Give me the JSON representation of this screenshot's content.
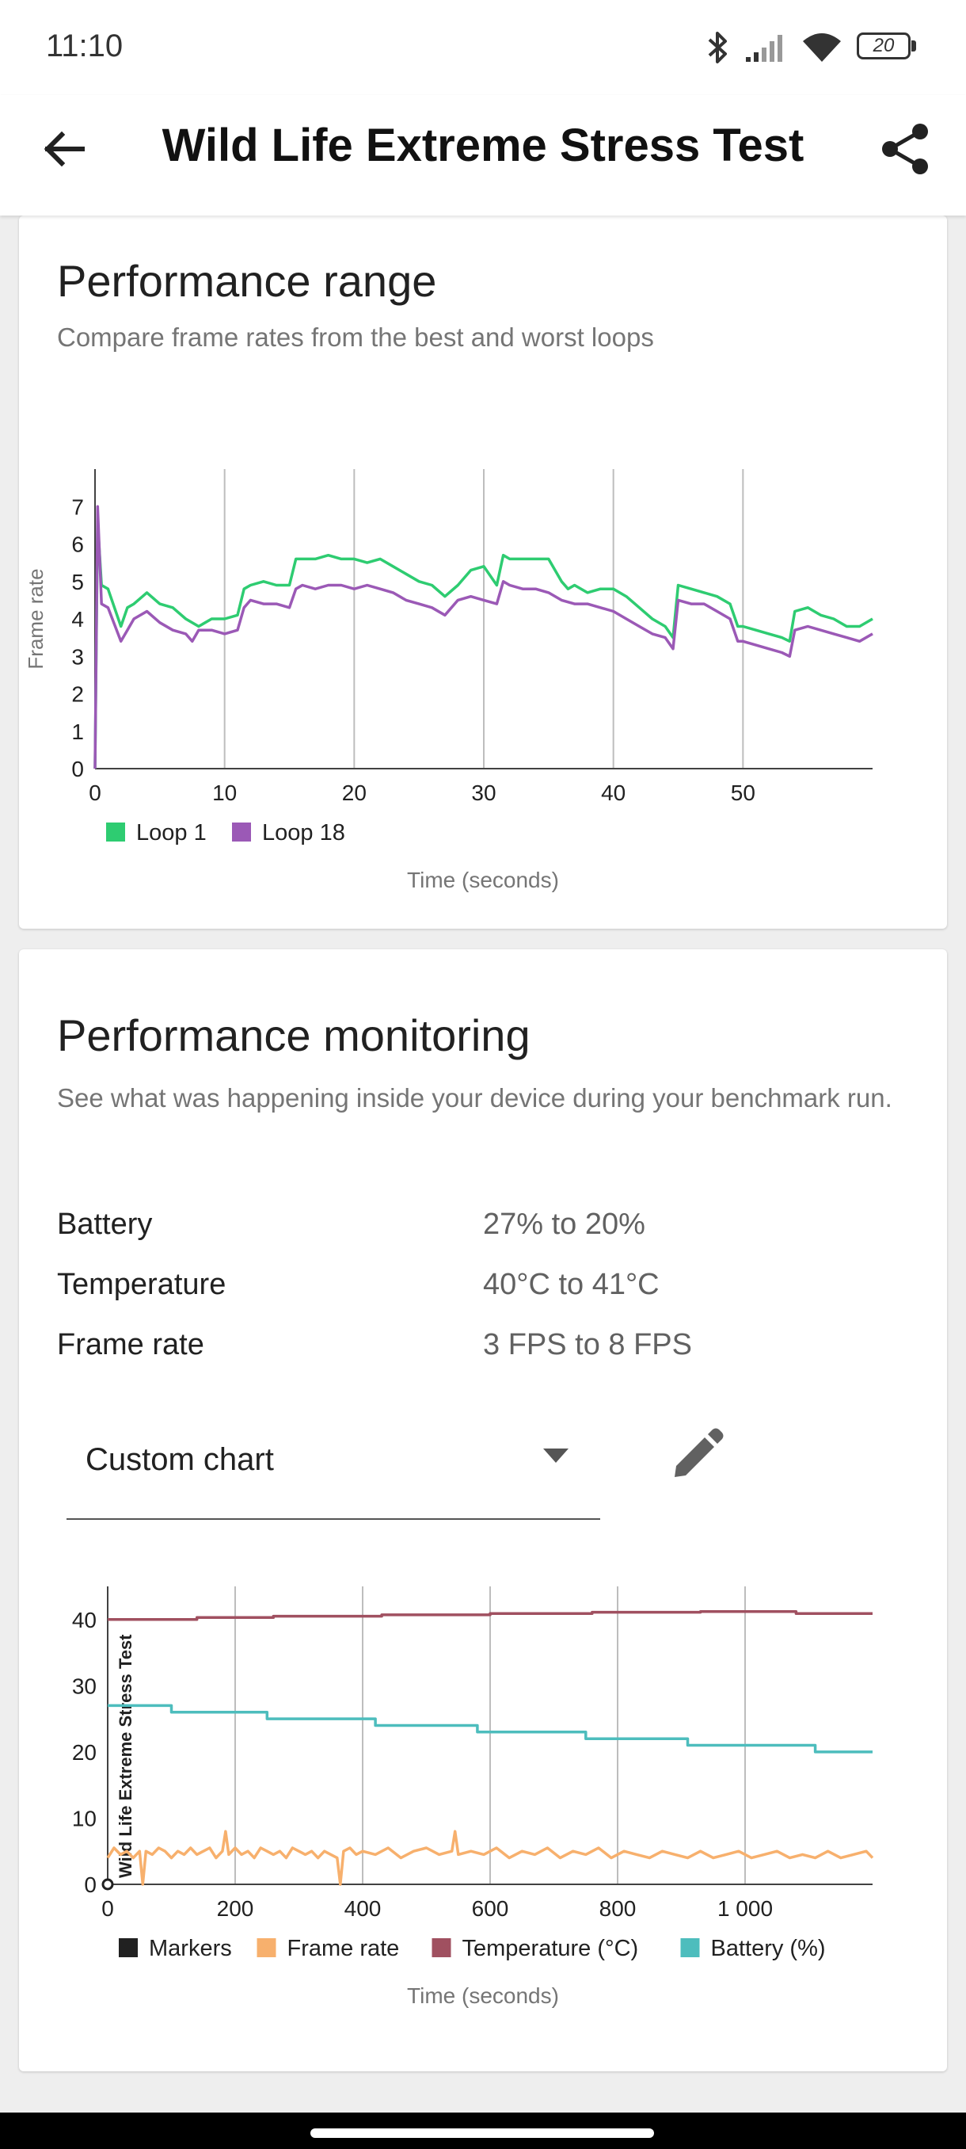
{
  "status_bar": {
    "time": "11:10",
    "battery": "20",
    "icons": [
      "bluetooth-icon",
      "signal-icon",
      "wifi-icon",
      "battery-icon"
    ]
  },
  "app_bar": {
    "title": "Wild Life Extreme Stress Test",
    "back_icon": "arrow-left-icon",
    "share_icon": "share-icon"
  },
  "performance_range": {
    "title": "Performance range",
    "subtitle": "Compare frame rates from the best and worst loops"
  },
  "performance_monitoring": {
    "title": "Performance monitoring",
    "subtitle": "See what was happening inside your device during your benchmark run.",
    "stats": [
      {
        "label": "Battery",
        "value": "27% to 20%"
      },
      {
        "label": "Temperature",
        "value": "40°C to 41°C"
      },
      {
        "label": "Frame rate",
        "value": "3 FPS to 8 FPS"
      }
    ],
    "dropdown_value": "Custom chart",
    "edit_icon": "pencil-icon"
  },
  "chart_data": [
    {
      "type": "line",
      "ylabel": "Frame rate",
      "xlabel": "Time (seconds)",
      "xlim": [
        0,
        60
      ],
      "ylim": [
        0,
        8
      ],
      "x_ticks": [
        0,
        10,
        20,
        30,
        40,
        50
      ],
      "y_ticks": [
        0,
        1,
        2,
        3,
        4,
        5,
        6,
        7
      ],
      "legend_position": "bottom-left",
      "series": [
        {
          "name": "Loop 1",
          "color": "#2ecc71",
          "x": [
            0,
            0.2,
            0.5,
            1.0,
            2.0,
            2.5,
            3.0,
            4.0,
            5.0,
            6.0,
            7.0,
            8.0,
            9.0,
            10.0,
            11.0,
            11.5,
            12.0,
            13.0,
            14.0,
            15.0,
            15.5,
            16.0,
            17.0,
            18.0,
            19.0,
            20.0,
            21.0,
            22.0,
            23.0,
            24.0,
            25.0,
            26.0,
            27.0,
            28.0,
            29.0,
            30.0,
            31.0,
            31.5,
            32.0,
            33.0,
            34.0,
            35.0,
            36.0,
            36.5,
            37.0,
            38.0,
            39.0,
            40.0,
            41.0,
            42.0,
            43.0,
            44.0,
            44.6,
            45.0,
            46.0,
            47.0,
            48.0,
            49.0,
            49.6,
            50.0,
            51.0,
            52.0,
            53.0,
            53.6,
            54.0,
            55.0,
            56.0,
            57.0,
            58.0,
            59.0,
            60.0
          ],
          "y": [
            0,
            6.6,
            4.9,
            4.8,
            3.8,
            4.3,
            4.4,
            4.7,
            4.4,
            4.3,
            4.0,
            3.8,
            4.0,
            4.0,
            4.1,
            4.8,
            4.9,
            5.0,
            4.9,
            4.9,
            5.6,
            5.6,
            5.6,
            5.7,
            5.6,
            5.6,
            5.5,
            5.6,
            5.4,
            5.2,
            5.0,
            4.9,
            4.6,
            4.9,
            5.3,
            5.4,
            4.9,
            5.7,
            5.6,
            5.6,
            5.6,
            5.6,
            5.0,
            4.8,
            4.9,
            4.7,
            4.8,
            4.8,
            4.6,
            4.3,
            4.0,
            3.8,
            3.5,
            4.9,
            4.8,
            4.7,
            4.6,
            4.4,
            3.8,
            3.8,
            3.7,
            3.6,
            3.5,
            3.4,
            4.2,
            4.3,
            4.1,
            4.0,
            3.8,
            3.8,
            4.0
          ]
        },
        {
          "name": "Loop 18",
          "color": "#9b59b6",
          "x": [
            0,
            0.2,
            0.5,
            1.0,
            2.0,
            2.5,
            3.0,
            4.0,
            5.0,
            6.0,
            7.0,
            7.5,
            8.0,
            9.0,
            10.0,
            11.0,
            11.5,
            12.0,
            13.0,
            14.0,
            15.0,
            15.5,
            16.0,
            17.0,
            18.0,
            19.0,
            20.0,
            21.0,
            22.0,
            23.0,
            24.0,
            25.0,
            26.0,
            27.0,
            28.0,
            29.0,
            30.0,
            31.0,
            31.5,
            32.0,
            33.0,
            34.0,
            35.0,
            36.0,
            37.0,
            38.0,
            39.0,
            40.0,
            41.0,
            42.0,
            43.0,
            44.0,
            44.6,
            45.0,
            46.0,
            47.0,
            48.0,
            49.0,
            49.6,
            50.0,
            51.0,
            52.0,
            53.0,
            53.6,
            54.0,
            55.0,
            56.0,
            57.0,
            58.0,
            59.0,
            60.0
          ],
          "y": [
            0,
            7.0,
            4.4,
            4.3,
            3.4,
            3.7,
            4.0,
            4.2,
            3.9,
            3.7,
            3.6,
            3.4,
            3.7,
            3.7,
            3.6,
            3.7,
            4.3,
            4.5,
            4.4,
            4.4,
            4.3,
            4.8,
            4.9,
            4.8,
            4.9,
            4.9,
            4.8,
            4.9,
            4.8,
            4.7,
            4.5,
            4.4,
            4.3,
            4.1,
            4.5,
            4.6,
            4.5,
            4.4,
            5.0,
            4.9,
            4.8,
            4.8,
            4.7,
            4.5,
            4.4,
            4.4,
            4.3,
            4.2,
            4.0,
            3.8,
            3.6,
            3.5,
            3.2,
            4.5,
            4.4,
            4.4,
            4.2,
            4.0,
            3.4,
            3.4,
            3.3,
            3.2,
            3.1,
            3.0,
            3.7,
            3.8,
            3.7,
            3.6,
            3.5,
            3.4,
            3.6
          ]
        }
      ]
    },
    {
      "type": "line",
      "xlabel": "Time (seconds)",
      "xlim": [
        0,
        1200
      ],
      "ylim": [
        0,
        45
      ],
      "x_ticks": [
        0,
        200,
        400,
        600,
        800,
        1000
      ],
      "x_tick_labels": [
        "0",
        "200",
        "400",
        "600",
        "800",
        "1 000"
      ],
      "y_ticks": [
        0,
        10,
        20,
        30,
        40
      ],
      "legend_position": "bottom-left",
      "marker": {
        "x": 0,
        "label": "Wild Life Extreme Stress Test"
      },
      "series": [
        {
          "name": "Markers",
          "color": "#212121",
          "x": [],
          "y": []
        },
        {
          "name": "Frame rate",
          "color": "#f7b06d",
          "x": [
            0,
            10,
            20,
            30,
            40,
            50,
            55,
            60,
            70,
            80,
            90,
            100,
            110,
            120,
            130,
            140,
            150,
            160,
            170,
            180,
            185,
            190,
            200,
            210,
            220,
            230,
            240,
            250,
            260,
            270,
            280,
            290,
            300,
            310,
            320,
            330,
            340,
            350,
            360,
            365,
            370,
            380,
            390,
            400,
            420,
            440,
            460,
            480,
            500,
            520,
            540,
            545,
            550,
            570,
            590,
            610,
            630,
            650,
            670,
            690,
            710,
            730,
            750,
            770,
            790,
            810,
            830,
            850,
            870,
            890,
            910,
            930,
            950,
            970,
            990,
            1010,
            1030,
            1050,
            1070,
            1090,
            1110,
            1130,
            1150,
            1170,
            1190,
            1200
          ],
          "y": [
            4,
            5.5,
            4.5,
            5,
            4,
            5,
            0,
            5,
            4.5,
            5.5,
            5,
            4,
            5,
            4.5,
            5.5,
            4.5,
            5,
            5.5,
            4,
            5,
            8,
            4.5,
            5.5,
            4.5,
            5,
            4,
            5.5,
            5,
            4.5,
            5,
            4,
            5.5,
            5,
            4.5,
            5,
            4,
            5,
            4.5,
            4,
            0,
            5,
            5.5,
            4.5,
            5,
            4.5,
            5.5,
            4,
            5,
            5.5,
            4.5,
            5,
            8,
            4.5,
            5,
            4.5,
            5.5,
            4,
            5,
            4.5,
            5.5,
            4,
            5,
            4.5,
            5.5,
            4,
            5,
            4.5,
            4,
            5,
            4.5,
            4,
            5,
            4,
            4.5,
            5,
            4,
            4.5,
            5,
            4,
            4.5,
            4,
            5,
            4,
            4.5,
            5,
            4
          ]
        },
        {
          "name": "Temperature (°C)",
          "color": "#a05060",
          "x": [
            0,
            130,
            140,
            250,
            260,
            420,
            430,
            590,
            600,
            750,
            760,
            920,
            930,
            1070,
            1080,
            1200
          ],
          "y": [
            40,
            40,
            40.3,
            40.3,
            40.5,
            40.5,
            40.7,
            40.7,
            40.9,
            40.9,
            41.1,
            41.1,
            41.2,
            41.2,
            40.9,
            40.9
          ],
          "step": true
        },
        {
          "name": "Battery (%)",
          "color": "#4dbdbd",
          "x": [
            0,
            100,
            250,
            420,
            580,
            750,
            910,
            1110,
            1200
          ],
          "y": [
            27,
            26,
            25,
            24,
            23,
            22,
            21,
            20,
            20
          ],
          "step": true
        }
      ]
    }
  ]
}
